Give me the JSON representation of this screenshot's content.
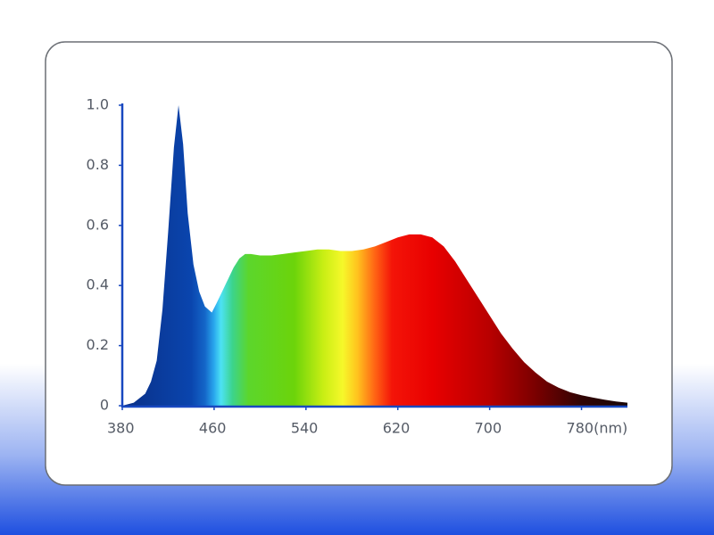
{
  "chart_data": {
    "type": "area",
    "x": [
      380,
      390,
      400,
      405,
      410,
      415,
      420,
      425,
      429,
      433,
      437,
      442,
      447,
      452,
      458,
      462,
      467,
      472,
      477,
      482,
      487,
      492,
      500,
      510,
      520,
      530,
      540,
      550,
      560,
      570,
      580,
      590,
      600,
      610,
      620,
      630,
      640,
      650,
      660,
      670,
      680,
      690,
      700,
      710,
      720,
      730,
      740,
      750,
      760,
      770,
      780,
      790,
      800,
      810,
      820
    ],
    "values": [
      0,
      0.01,
      0.04,
      0.08,
      0.15,
      0.32,
      0.58,
      0.86,
      1.0,
      0.87,
      0.64,
      0.47,
      0.38,
      0.33,
      0.31,
      0.34,
      0.38,
      0.42,
      0.46,
      0.49,
      0.505,
      0.505,
      0.5,
      0.5,
      0.505,
      0.51,
      0.515,
      0.52,
      0.52,
      0.515,
      0.515,
      0.52,
      0.53,
      0.545,
      0.56,
      0.57,
      0.57,
      0.56,
      0.53,
      0.48,
      0.42,
      0.36,
      0.3,
      0.24,
      0.19,
      0.145,
      0.11,
      0.08,
      0.06,
      0.045,
      0.035,
      0.027,
      0.02,
      0.014,
      0.01
    ],
    "xlim": [
      380,
      820
    ],
    "xticks": [
      380,
      460,
      540,
      620,
      700,
      {
        "value": 780,
        "label": "780(nm)"
      }
    ],
    "ylim": [
      0,
      1
    ],
    "yticks": [
      0,
      0.2,
      0.4,
      0.6,
      0.8,
      {
        "value": 1,
        "label": "1.0"
      }
    ],
    "axis_color": "#1848c0",
    "color_stops": [
      {
        "value": 380,
        "color": "#0a2f86"
      },
      {
        "value": 440,
        "color": "#0a45ae"
      },
      {
        "value": 452,
        "color": "#1466c8"
      },
      {
        "value": 460,
        "color": "#2aa8ee"
      },
      {
        "value": 466,
        "color": "#4de2f4"
      },
      {
        "value": 476,
        "color": "#3cd48c"
      },
      {
        "value": 490,
        "color": "#5cd62c"
      },
      {
        "value": 530,
        "color": "#6cd40a"
      },
      {
        "value": 555,
        "color": "#c8ee14"
      },
      {
        "value": 572,
        "color": "#f6f82a"
      },
      {
        "value": 585,
        "color": "#ffc21e"
      },
      {
        "value": 600,
        "color": "#ff6414"
      },
      {
        "value": 615,
        "color": "#f41408"
      },
      {
        "value": 650,
        "color": "#e80000"
      },
      {
        "value": 700,
        "color": "#b80000"
      },
      {
        "value": 740,
        "color": "#7a0000"
      },
      {
        "value": 780,
        "color": "#300404"
      },
      {
        "value": 820,
        "color": "#1a0606"
      }
    ]
  }
}
